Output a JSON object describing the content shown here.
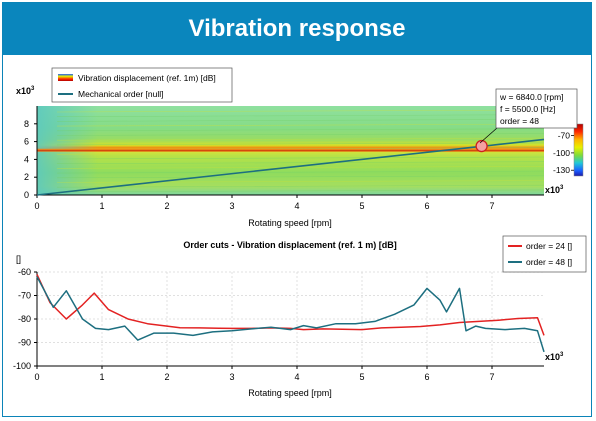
{
  "header": {
    "title": "Vibration response"
  },
  "chart_data": [
    {
      "type": "heatmap",
      "legend": [
        "Vibration displacement (ref. 1m) [dB]",
        "Mechanical order [null]"
      ],
      "xlabel": "Rotating speed [rpm]",
      "x_multiplier": "x10",
      "x_multiplier_exp": "3",
      "y_multiplier": "x10",
      "y_multiplier_exp": "3",
      "xlim": [
        0,
        7.8
      ],
      "ylim": [
        0,
        10
      ],
      "xticks": [
        "0",
        "1",
        "2",
        "3",
        "4",
        "5",
        "6",
        "7"
      ],
      "yticks": [
        "0",
        "2",
        "4",
        "6",
        "8"
      ],
      "colorbar": {
        "ticks": [
          "-70",
          "-100",
          "-130"
        ],
        "range": [
          -140,
          -50
        ]
      },
      "order_line": {
        "x": [
          0,
          7.8
        ],
        "y": [
          0,
          6.24
        ]
      },
      "cursor": {
        "rpm": 6.84,
        "hz": 5.5,
        "lines": [
          "w = 6840.0 [rpm]",
          "f = 5500.0 [Hz]",
          "order = 48"
        ]
      }
    },
    {
      "type": "line",
      "title": "Order cuts - Vibration displacement (ref. 1 m) [dB]",
      "ylabel_unit": "[]",
      "xlabel": "Rotating speed [rpm]",
      "x_multiplier": "x10",
      "x_multiplier_exp": "3",
      "xlim": [
        0,
        7.8
      ],
      "ylim": [
        -100,
        -60
      ],
      "xticks": [
        "0",
        "1",
        "2",
        "3",
        "4",
        "5",
        "6",
        "7"
      ],
      "yticks": [
        "-60",
        "-70",
        "-80",
        "-90",
        "-100"
      ],
      "series": [
        {
          "name": "order = 24 []",
          "color": "#e32222",
          "x": [
            0,
            0.2,
            0.45,
            0.7,
            0.88,
            1.1,
            1.4,
            1.7,
            2.0,
            2.2,
            2.5,
            2.8,
            3.0,
            3.3,
            3.6,
            3.9,
            4.1,
            4.4,
            4.7,
            5.0,
            5.3,
            5.6,
            5.9,
            6.2,
            6.5,
            6.8,
            7.1,
            7.4,
            7.7,
            7.8
          ],
          "y": [
            -61,
            -73,
            -80,
            -74,
            -69,
            -76,
            -80,
            -82,
            -83,
            -83.7,
            -83.8,
            -83.9,
            -84,
            -84,
            -83.8,
            -84,
            -84.5,
            -84.2,
            -84.4,
            -84.5,
            -83.8,
            -83.5,
            -83.2,
            -82.5,
            -81.5,
            -81,
            -80.5,
            -79.8,
            -79.5,
            -87
          ]
        },
        {
          "name": "order = 48 []",
          "color": "#1d6f80",
          "x": [
            0,
            0.25,
            0.45,
            0.7,
            0.9,
            1.1,
            1.35,
            1.55,
            1.8,
            2.1,
            2.4,
            2.7,
            3.0,
            3.3,
            3.6,
            3.9,
            4.1,
            4.3,
            4.6,
            4.9,
            5.2,
            5.5,
            5.8,
            6.0,
            6.2,
            6.3,
            6.5,
            6.6,
            6.75,
            6.9,
            7.2,
            7.5,
            7.7,
            7.8
          ],
          "y": [
            -62,
            -75,
            -68,
            -80,
            -84,
            -84.5,
            -83,
            -89,
            -86,
            -86,
            -87,
            -85.5,
            -85,
            -84.2,
            -83.5,
            -84.5,
            -82.8,
            -83.8,
            -82,
            -82,
            -81,
            -78,
            -74,
            -67,
            -72,
            -77,
            -67,
            -85,
            -83,
            -84,
            -84.5,
            -84,
            -85,
            -94
          ]
        }
      ]
    }
  ]
}
